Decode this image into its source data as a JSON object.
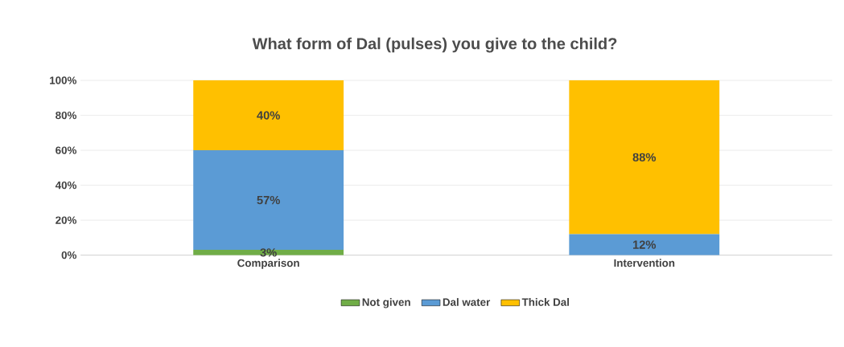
{
  "chart_data": {
    "type": "bar",
    "stacked": true,
    "title": "What form of Dal (pulses) you give to the child?",
    "categories": [
      "Comparison",
      "Intervention"
    ],
    "series": [
      {
        "name": "Not given",
        "color": "#70ad47",
        "values": [
          3,
          0
        ],
        "value_labels": [
          "3%",
          null
        ]
      },
      {
        "name": "Dal water",
        "color": "#5b9bd5",
        "values": [
          57,
          12
        ],
        "value_labels": [
          "57%",
          "12%"
        ]
      },
      {
        "name": "Thick Dal",
        "color": "#ffc000",
        "values": [
          40,
          88
        ],
        "value_labels": [
          "40%",
          "88%"
        ]
      }
    ],
    "ylim": [
      0,
      100
    ],
    "yticks": [
      {
        "value": 0,
        "label": "0%"
      },
      {
        "value": 20,
        "label": "20%"
      },
      {
        "value": 40,
        "label": "40%"
      },
      {
        "value": 60,
        "label": "60%"
      },
      {
        "value": 80,
        "label": "80%"
      },
      {
        "value": 100,
        "label": "100%"
      }
    ],
    "grid": "y",
    "legend": "bottom"
  }
}
